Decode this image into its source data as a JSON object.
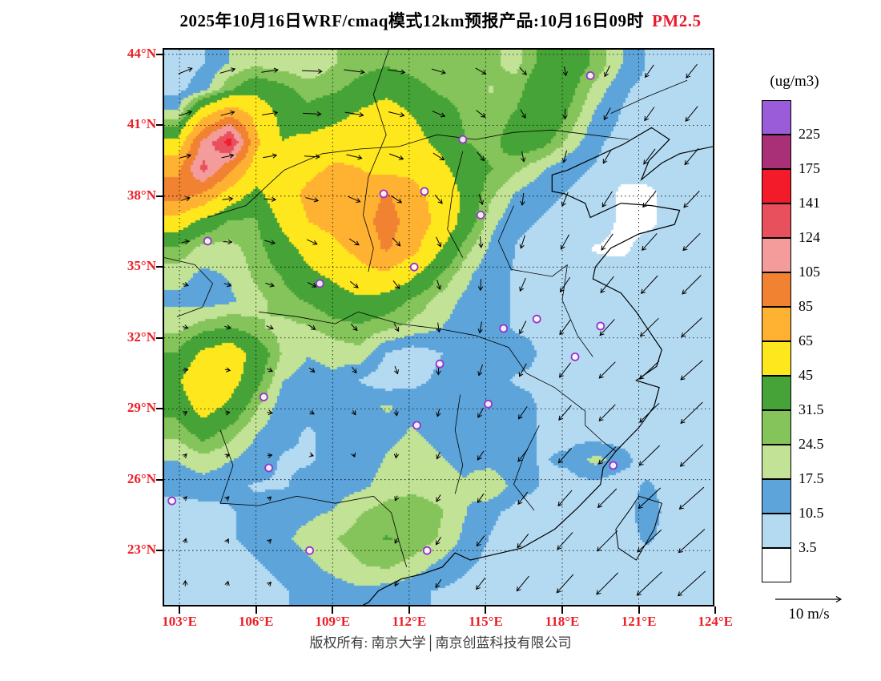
{
  "title": {
    "main": "2025年10月16日WRF/cmaq模式12km预报产品:10月16日09时",
    "species": "PM2.5"
  },
  "colorbar": {
    "units_label": "(ug/m3)"
  },
  "axes": {
    "label_color": "#ee1c25",
    "lat_ticks": [
      {
        "label": "44°N",
        "value": 44
      },
      {
        "label": "41°N",
        "value": 41
      },
      {
        "label": "38°N",
        "value": 38
      },
      {
        "label": "35°N",
        "value": 35
      },
      {
        "label": "32°N",
        "value": 32
      },
      {
        "label": "29°N",
        "value": 29
      },
      {
        "label": "26°N",
        "value": 26
      },
      {
        "label": "23°N",
        "value": 23
      }
    ],
    "lon_ticks": [
      {
        "label": "103°E",
        "value": 103
      },
      {
        "label": "106°E",
        "value": 106
      },
      {
        "label": "109°E",
        "value": 109
      },
      {
        "label": "112°E",
        "value": 112
      },
      {
        "label": "115°E",
        "value": 115
      },
      {
        "label": "118°E",
        "value": 118
      },
      {
        "label": "121°E",
        "value": 121
      },
      {
        "label": "124°E",
        "value": 124
      }
    ]
  },
  "wind_legend": {
    "label": "10 m/s",
    "speed_mps": 10
  },
  "footer": {
    "copyright": "版权所有: 南京大学│南京创蓝科技有限公司"
  },
  "chart_data": {
    "type": "heatmap",
    "field": "PM2.5 surface concentration forecast with 10m wind vectors",
    "units": "ug/m3",
    "lon_range": [
      102.4,
      123.9
    ],
    "lat_range": [
      20.7,
      44.2
    ],
    "levels": [
      3.5,
      10.5,
      17.5,
      24.5,
      31.5,
      45,
      65,
      85,
      105,
      124,
      141,
      175,
      225
    ],
    "palette": [
      "#ffffff",
      "#b4daf2",
      "#5ca4da",
      "#c2e296",
      "#84c45a",
      "#46a337",
      "#ffe71e",
      "#ffb232",
      "#f08232",
      "#f49c9c",
      "#e8505e",
      "#f31b2a",
      "#a93077",
      "#9a5cd8"
    ],
    "grid": {
      "ncols": 21,
      "nrows": 21,
      "values": [
        [
          6,
          10,
          18,
          22,
          20,
          18,
          24,
          28,
          30,
          28,
          26,
          30,
          26,
          22,
          35,
          38,
          30,
          18,
          10,
          6,
          6
        ],
        [
          8,
          15,
          30,
          40,
          35,
          28,
          30,
          35,
          40,
          35,
          30,
          28,
          24,
          28,
          42,
          35,
          22,
          12,
          8,
          6,
          6
        ],
        [
          20,
          60,
          85,
          60,
          40,
          35,
          40,
          48,
          55,
          45,
          38,
          30,
          26,
          33,
          45,
          30,
          16,
          10,
          6,
          6,
          6
        ],
        [
          50,
          110,
          150,
          70,
          45,
          50,
          55,
          60,
          55,
          50,
          42,
          32,
          28,
          38,
          35,
          22,
          12,
          8,
          6,
          6,
          6
        ],
        [
          80,
          130,
          90,
          55,
          50,
          60,
          68,
          65,
          58,
          60,
          50,
          38,
          32,
          26,
          18,
          12,
          10,
          6,
          6,
          6,
          6
        ],
        [
          95,
          80,
          55,
          40,
          55,
          70,
          75,
          72,
          88,
          72,
          58,
          42,
          26,
          16,
          12,
          10,
          8,
          2,
          2,
          6,
          6
        ],
        [
          55,
          40,
          30,
          30,
          48,
          65,
          72,
          78,
          92,
          78,
          60,
          40,
          20,
          12,
          10,
          8,
          8,
          2,
          2,
          6,
          6
        ],
        [
          30,
          22,
          22,
          28,
          38,
          50,
          60,
          72,
          88,
          72,
          48,
          28,
          16,
          10,
          8,
          6,
          3,
          2,
          6,
          6,
          6
        ],
        [
          20,
          16,
          18,
          26,
          32,
          42,
          48,
          58,
          62,
          48,
          32,
          20,
          12,
          10,
          8,
          6,
          6,
          6,
          6,
          6,
          6
        ],
        [
          16,
          14,
          16,
          22,
          28,
          32,
          38,
          42,
          38,
          30,
          22,
          16,
          12,
          10,
          8,
          8,
          6,
          6,
          6,
          6,
          6
        ],
        [
          22,
          28,
          32,
          26,
          22,
          24,
          28,
          30,
          26,
          22,
          18,
          14,
          12,
          10,
          10,
          8,
          8,
          6,
          6,
          6,
          6
        ],
        [
          32,
          48,
          55,
          40,
          24,
          18,
          20,
          22,
          10,
          6,
          10,
          14,
          12,
          12,
          10,
          8,
          8,
          6,
          6,
          6,
          6
        ],
        [
          42,
          62,
          52,
          36,
          18,
          14,
          16,
          10,
          6,
          8,
          12,
          12,
          12,
          10,
          10,
          8,
          8,
          6,
          6,
          6,
          6
        ],
        [
          36,
          52,
          42,
          26,
          14,
          12,
          14,
          16,
          18,
          16,
          14,
          12,
          14,
          12,
          10,
          8,
          8,
          6,
          6,
          6,
          6
        ],
        [
          26,
          36,
          28,
          18,
          12,
          10,
          12,
          14,
          16,
          18,
          16,
          14,
          14,
          12,
          10,
          8,
          6,
          6,
          6,
          6,
          6
        ],
        [
          18,
          22,
          18,
          14,
          10,
          10,
          12,
          14,
          18,
          20,
          18,
          16,
          14,
          12,
          10,
          12,
          20,
          14,
          6,
          6,
          6
        ],
        [
          12,
          14,
          12,
          10,
          10,
          12,
          14,
          16,
          20,
          22,
          20,
          18,
          24,
          14,
          10,
          8,
          8,
          6,
          12,
          6,
          6
        ],
        [
          8,
          8,
          10,
          12,
          14,
          16,
          18,
          24,
          28,
          30,
          26,
          18,
          12,
          8,
          6,
          6,
          6,
          6,
          15,
          6,
          6
        ],
        [
          6,
          8,
          10,
          12,
          16,
          20,
          24,
          28,
          32,
          30,
          24,
          16,
          10,
          8,
          6,
          6,
          6,
          6,
          12,
          6,
          6
        ],
        [
          6,
          6,
          8,
          10,
          12,
          16,
          20,
          24,
          26,
          22,
          16,
          12,
          8,
          6,
          6,
          6,
          6,
          6,
          6,
          6,
          6
        ],
        [
          6,
          6,
          6,
          8,
          10,
          12,
          14,
          16,
          14,
          12,
          10,
          8,
          6,
          6,
          6,
          6,
          6,
          6,
          6,
          6,
          6
        ]
      ]
    },
    "wind": {
      "ncols": 8,
      "nrows": 8,
      "ref_speed_mps": 10,
      "u": [
        [
          5,
          6,
          8,
          6,
          4,
          2,
          -2,
          -4
        ],
        [
          4,
          5,
          6,
          5,
          3,
          0,
          -3,
          -5
        ],
        [
          3,
          4,
          4,
          3,
          1,
          -2,
          -4,
          -6
        ],
        [
          2,
          3,
          3,
          2,
          0,
          -3,
          -5,
          -7
        ],
        [
          2,
          2,
          2,
          1,
          -1,
          -3,
          -6,
          -8
        ],
        [
          1,
          2,
          1,
          0,
          -2,
          -4,
          -6,
          -8
        ],
        [
          1,
          1,
          0,
          -1,
          -2,
          -4,
          -7,
          -9
        ],
        [
          0,
          1,
          0,
          -1,
          -3,
          -5,
          -8,
          -10
        ]
      ],
      "v": [
        [
          2,
          1,
          -1,
          -1,
          -2,
          -3,
          -4,
          -5
        ],
        [
          1,
          1,
          -1,
          -2,
          -3,
          -4,
          -5,
          -6
        ],
        [
          1,
          -1,
          -2,
          -3,
          -4,
          -5,
          -6,
          -6
        ],
        [
          -1,
          -1,
          -2,
          -3,
          -4,
          -5,
          -6,
          -7
        ],
        [
          0,
          -1,
          -2,
          -3,
          -4,
          -5,
          -6,
          -7
        ],
        [
          1,
          0,
          -1,
          -2,
          -3,
          -5,
          -6,
          -8
        ],
        [
          1,
          1,
          0,
          -2,
          -3,
          -5,
          -7,
          -8
        ],
        [
          2,
          1,
          0,
          -2,
          -4,
          -6,
          -8,
          -9
        ]
      ]
    },
    "city_markers_lonlat": [
      [
        119.1,
        43.1
      ],
      [
        114.1,
        40.4
      ],
      [
        112.6,
        38.2
      ],
      [
        111.0,
        38.1
      ],
      [
        114.8,
        37.2
      ],
      [
        104.1,
        36.1
      ],
      [
        108.5,
        34.3
      ],
      [
        112.2,
        35.0
      ],
      [
        115.7,
        32.4
      ],
      [
        117.0,
        32.8
      ],
      [
        119.5,
        32.5
      ],
      [
        118.5,
        31.2
      ],
      [
        113.2,
        30.9
      ],
      [
        106.3,
        29.5
      ],
      [
        115.1,
        29.2
      ],
      [
        112.3,
        28.3
      ],
      [
        106.5,
        26.5
      ],
      [
        120.0,
        26.6
      ],
      [
        102.7,
        25.1
      ],
      [
        108.1,
        23.0
      ],
      [
        112.7,
        23.0
      ]
    ],
    "map_outline": {
      "coast": [
        [
          123.9,
          40.1
        ],
        [
          122.6,
          39.8
        ],
        [
          121.9,
          39.4
        ],
        [
          121.1,
          38.7
        ],
        [
          121.4,
          39.5
        ],
        [
          122.2,
          40.4
        ],
        [
          121.5,
          40.9
        ],
        [
          120.4,
          40.2
        ],
        [
          119.4,
          39.7
        ],
        [
          118.2,
          39.1
        ],
        [
          117.6,
          38.9
        ],
        [
          117.6,
          38.2
        ],
        [
          118.1,
          38.1
        ],
        [
          118.9,
          37.7
        ],
        [
          119.1,
          37.1
        ],
        [
          120.3,
          37.7
        ],
        [
          121.5,
          37.6
        ],
        [
          122.6,
          37.4
        ],
        [
          122.4,
          36.8
        ],
        [
          121.0,
          36.4
        ],
        [
          119.9,
          35.8
        ],
        [
          119.3,
          35.0
        ],
        [
          119.2,
          34.5
        ],
        [
          120.3,
          33.9
        ],
        [
          120.9,
          33.1
        ],
        [
          121.4,
          32.3
        ],
        [
          121.9,
          31.5
        ],
        [
          121.7,
          30.8
        ],
        [
          120.9,
          30.2
        ],
        [
          121.8,
          29.9
        ],
        [
          121.6,
          29.1
        ],
        [
          121.0,
          28.2
        ],
        [
          120.1,
          27.2
        ],
        [
          119.6,
          26.5
        ],
        [
          119.5,
          25.8
        ],
        [
          118.6,
          24.8
        ],
        [
          117.7,
          23.9
        ],
        [
          116.4,
          23.1
        ],
        [
          115.2,
          22.8
        ],
        [
          114.4,
          22.6
        ],
        [
          113.8,
          22.9
        ],
        [
          113.3,
          22.3
        ],
        [
          112.5,
          22.0
        ],
        [
          111.7,
          21.8
        ],
        [
          110.8,
          21.3
        ],
        [
          110.4,
          20.8
        ],
        [
          110.2,
          20.7
        ]
      ],
      "taiwan": [
        [
          121.0,
          25.3
        ],
        [
          121.9,
          25.0
        ],
        [
          121.6,
          23.9
        ],
        [
          120.9,
          22.6
        ],
        [
          120.2,
          23.1
        ],
        [
          120.1,
          23.9
        ],
        [
          120.7,
          24.8
        ],
        [
          121.0,
          25.3
        ]
      ],
      "provinces": [
        [
          [
            111.2,
            44.2
          ],
          [
            110.6,
            42.3
          ],
          [
            111.1,
            40.6
          ],
          [
            110.4,
            38.8
          ],
          [
            110.2,
            37.2
          ],
          [
            110.6,
            35.8
          ],
          [
            110.4,
            34.8
          ]
        ],
        [
          [
            114.1,
            39.9
          ],
          [
            113.7,
            38.2
          ],
          [
            113.5,
            36.6
          ],
          [
            114.1,
            35.4
          ]
        ],
        [
          [
            116.1,
            37.6
          ],
          [
            115.5,
            36.1
          ],
          [
            116.0,
            34.9
          ],
          [
            117.6,
            34.6
          ],
          [
            118.2,
            35.1
          ]
        ],
        [
          [
            118.2,
            35.1
          ],
          [
            118.0,
            33.6
          ],
          [
            118.6,
            32.1
          ],
          [
            119.2,
            31.2
          ]
        ],
        [
          [
            110.0,
            33.1
          ],
          [
            111.6,
            32.6
          ],
          [
            113.1,
            32.4
          ],
          [
            114.6,
            32.1
          ],
          [
            115.9,
            31.6
          ],
          [
            116.6,
            30.5
          ]
        ],
        [
          [
            114.0,
            29.6
          ],
          [
            113.8,
            28.1
          ],
          [
            114.1,
            26.6
          ],
          [
            113.8,
            25.4
          ]
        ],
        [
          [
            111.3,
            24.6
          ],
          [
            111.6,
            23.4
          ],
          [
            111.9,
            22.3
          ]
        ],
        [
          [
            117.1,
            28.3
          ],
          [
            116.5,
            27.0
          ],
          [
            116.1,
            25.8
          ],
          [
            116.9,
            24.7
          ]
        ],
        [
          [
            106.1,
            33.1
          ],
          [
            107.6,
            32.9
          ],
          [
            109.1,
            32.6
          ],
          [
            110.0,
            33.1
          ]
        ],
        [
          [
            104.6,
            28.1
          ],
          [
            105.1,
            26.6
          ],
          [
            104.6,
            25.0
          ]
        ],
        [
          [
            104.1,
            37.1
          ],
          [
            105.6,
            37.6
          ],
          [
            106.6,
            38.6
          ],
          [
            107.1,
            39.1
          ]
        ],
        [
          [
            107.1,
            39.1
          ],
          [
            108.6,
            39.8
          ],
          [
            110.1,
            40.0
          ],
          [
            111.6,
            40.1
          ],
          [
            113.1,
            40.6
          ],
          [
            114.6,
            40.4
          ],
          [
            116.1,
            40.7
          ],
          [
            117.6,
            40.8
          ],
          [
            119.1,
            40.6
          ],
          [
            120.6,
            40.4
          ]
        ],
        [
          [
            119.9,
            41.5
          ],
          [
            121.3,
            42.2
          ],
          [
            122.9,
            42.9
          ]
        ],
        [
          [
            102.4,
            35.4
          ],
          [
            103.6,
            35.1
          ],
          [
            104.3,
            34.3
          ],
          [
            103.9,
            33.3
          ],
          [
            102.9,
            32.9
          ]
        ],
        [
          [
            104.6,
            25.0
          ],
          [
            106.1,
            24.9
          ],
          [
            107.6,
            25.3
          ],
          [
            109.1,
            25.0
          ],
          [
            110.6,
            25.3
          ],
          [
            111.3,
            24.6
          ]
        ],
        [
          [
            116.6,
            30.5
          ],
          [
            117.7,
            29.9
          ],
          [
            118.9,
            28.9
          ],
          [
            118.9,
            28.3
          ]
        ],
        [
          [
            118.9,
            28.3
          ],
          [
            119.6,
            27.6
          ],
          [
            120.1,
            27.2
          ]
        ]
      ]
    }
  }
}
